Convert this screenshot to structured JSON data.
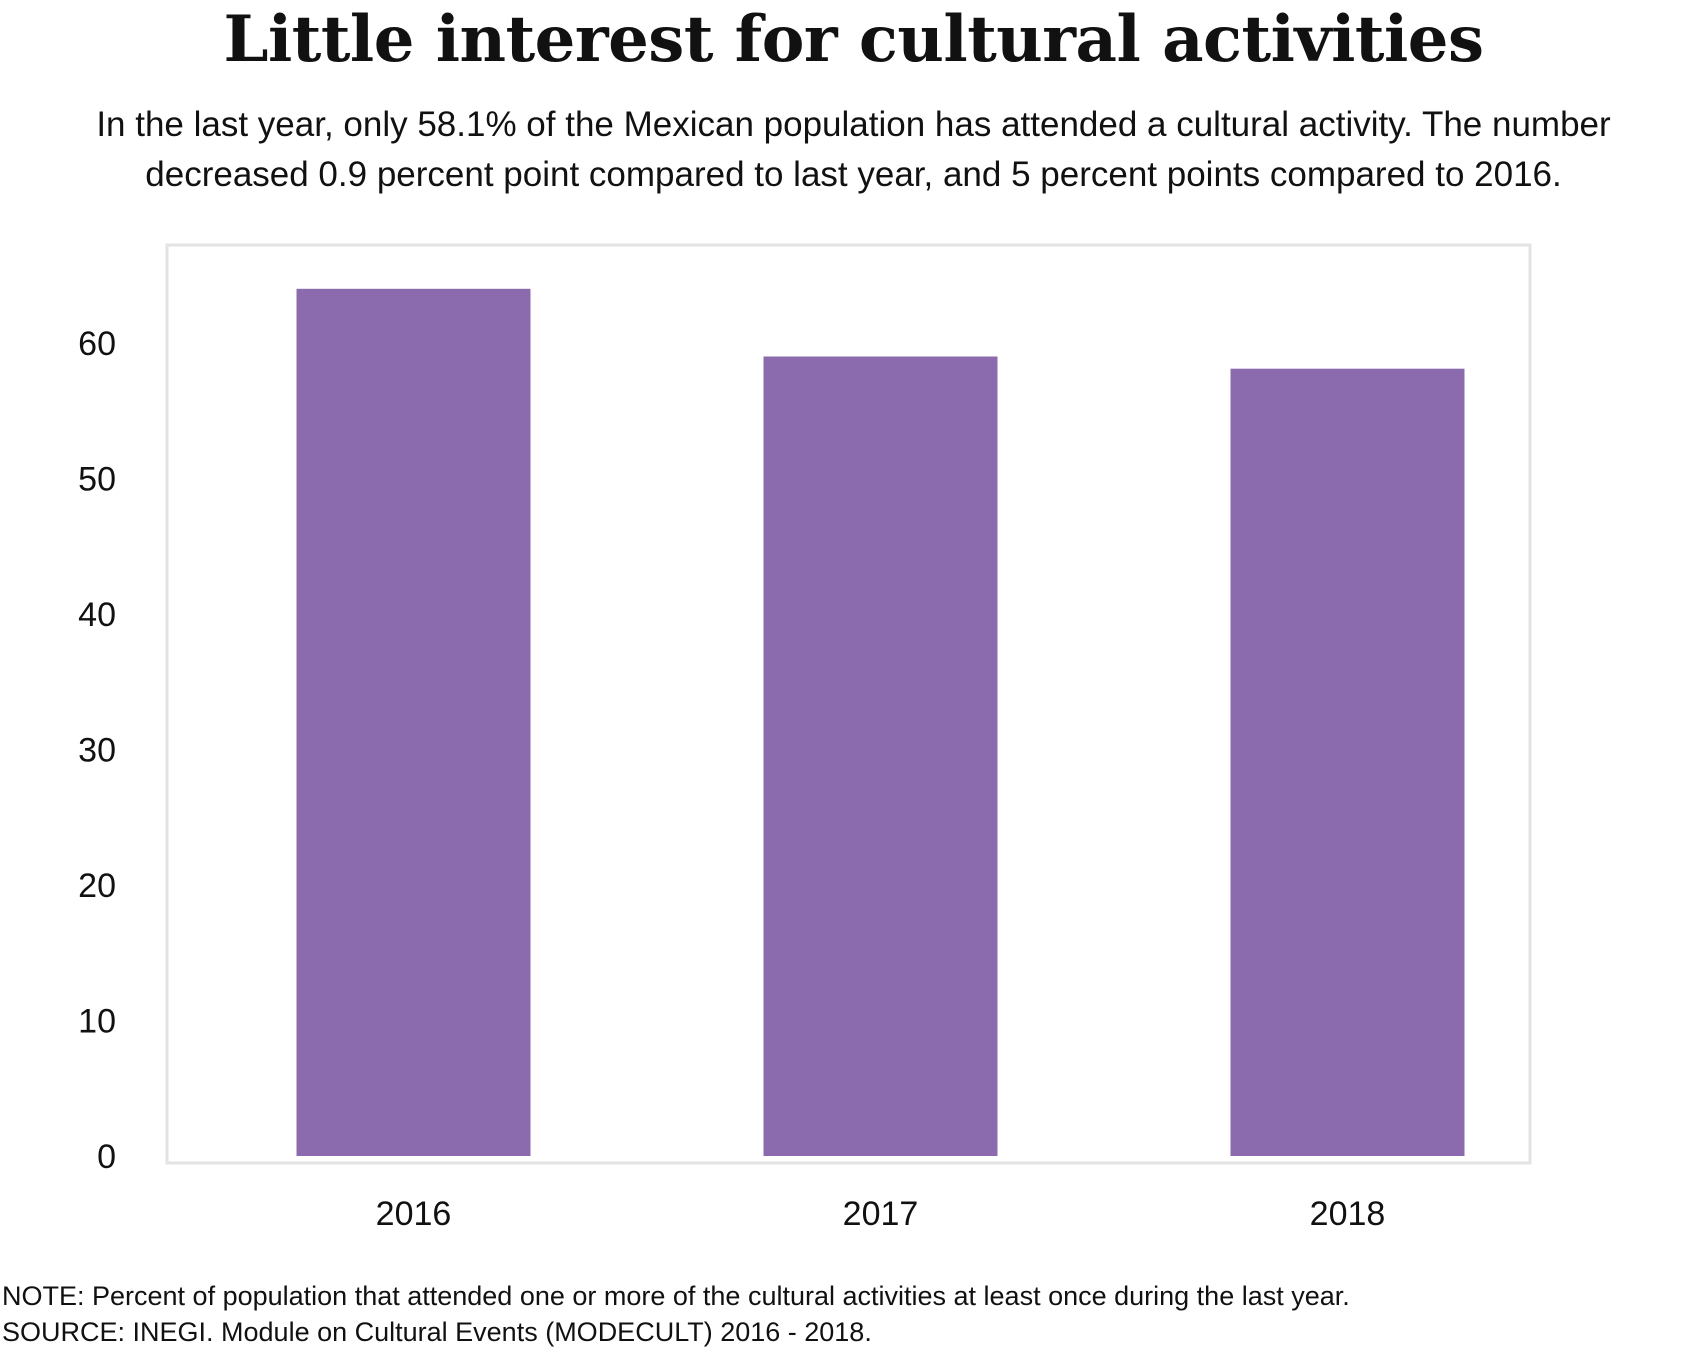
{
  "title": "Little interest for cultural activities",
  "subtitle": {
    "line1": "In the last year, only 58.1% of the Mexican population has attended a cultural activity. The number",
    "line2": "decreased 0.9 percent point compared to last year, and 5 percent points compared to 2016."
  },
  "footer": {
    "note": "NOTE: Percent of population that attended one or more  of the cultural activities at least once during the last year.",
    "source": "SOURCE: INEGI. Module on Cultural Events (MODECULT) 2016 - 2018."
  },
  "chart_data": {
    "type": "bar",
    "categories": [
      "2016",
      "2017",
      "2018"
    ],
    "values": [
      64.0,
      59.0,
      58.1
    ],
    "ylim": [
      0,
      60
    ],
    "yticks": [
      0,
      10,
      20,
      30,
      40,
      50,
      60
    ],
    "grid": false,
    "legend": "none",
    "bar_color": "#8b6bae",
    "frame_color": "#e3e3e3"
  }
}
